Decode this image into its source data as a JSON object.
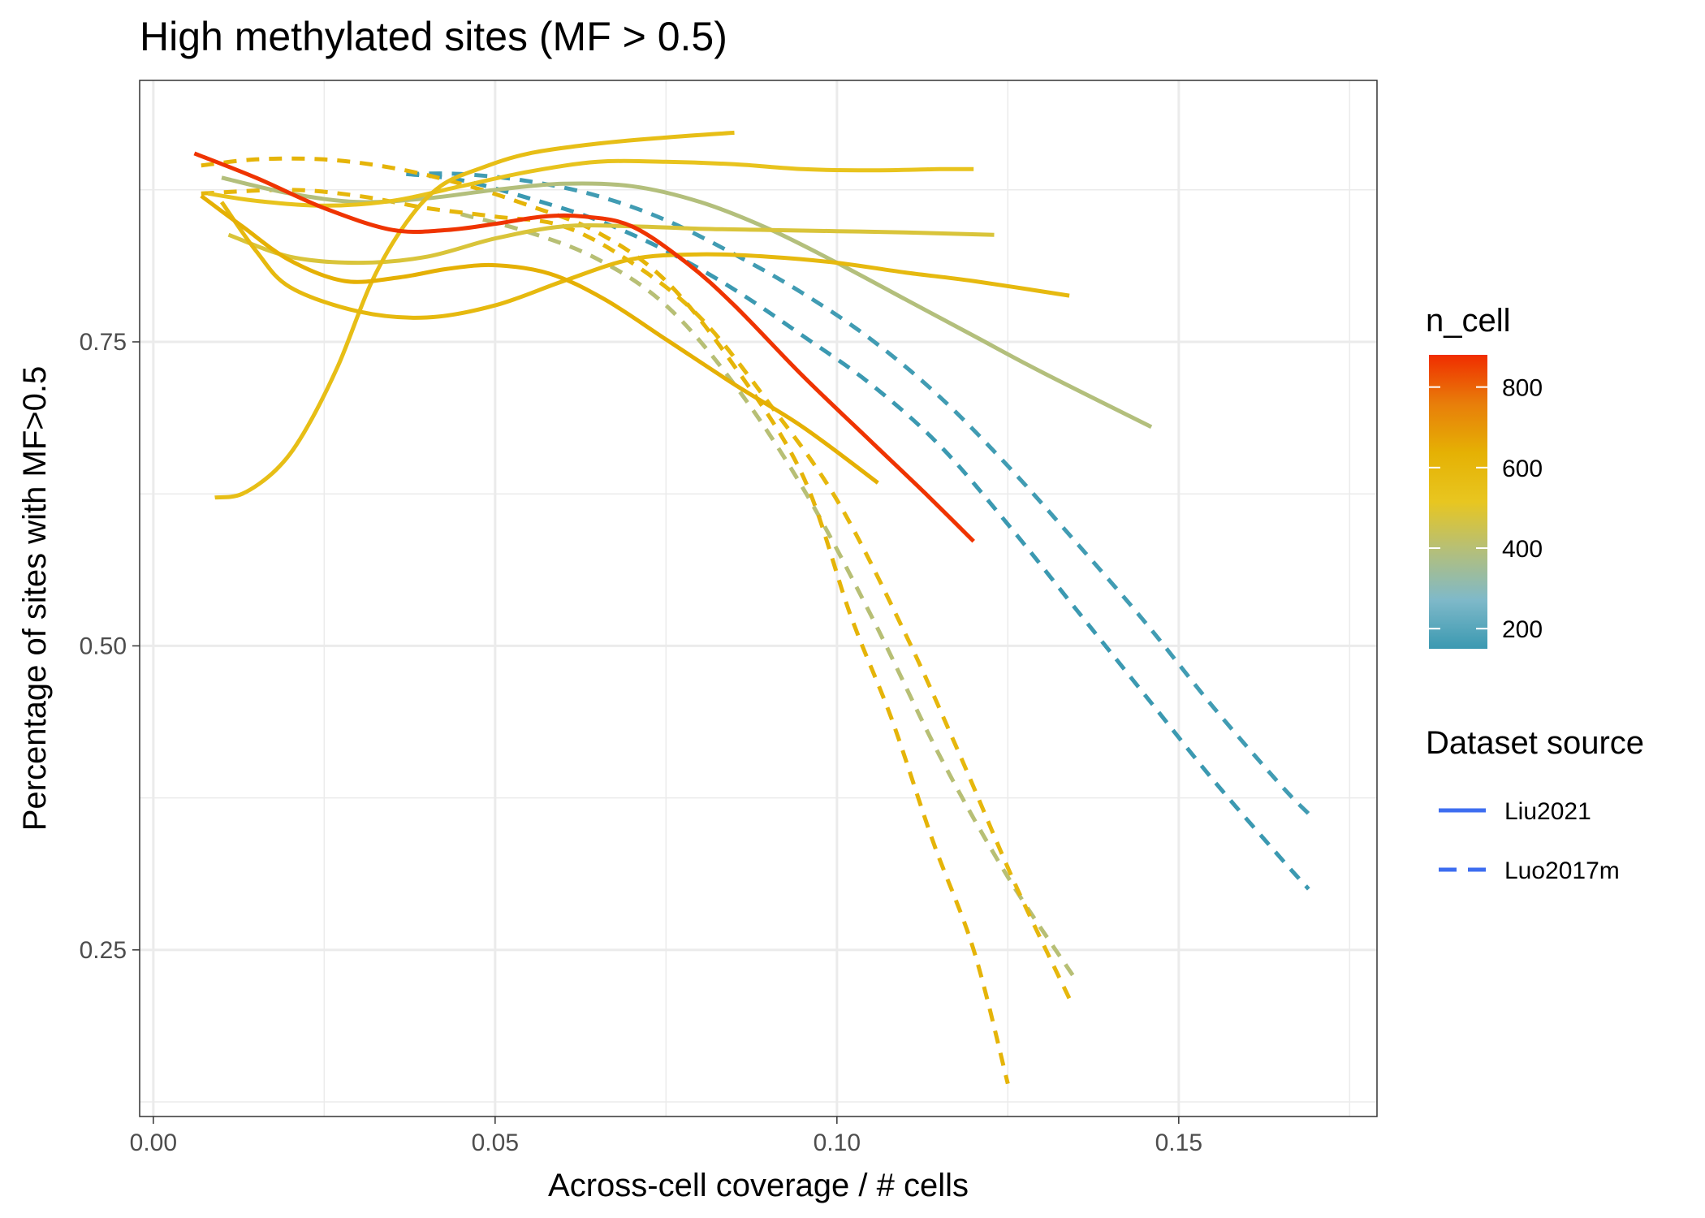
{
  "chart_data": {
    "type": "line",
    "title": "High methylated sites (MF > 0.5)",
    "xlabel": "Across-cell coverage / # cells",
    "ylabel": "Percentage of sites with MF>0.5",
    "xlim": [
      -0.002,
      0.179
    ],
    "ylim": [
      0.113,
      0.965
    ],
    "x_ticks": [
      0.0,
      0.05,
      0.1,
      0.15
    ],
    "x_tick_labels": [
      "0.00",
      "0.05",
      "0.10",
      "0.15"
    ],
    "y_ticks": [
      0.25,
      0.5,
      0.75
    ],
    "y_tick_labels": [
      "0.25",
      "0.50",
      "0.75"
    ],
    "grid": true,
    "colorbar": {
      "title": "n_cell",
      "min": 150,
      "max": 880,
      "ticks": [
        200,
        400,
        600,
        800
      ],
      "tick_labels": [
        "200",
        "400",
        "600",
        "800"
      ],
      "colors": [
        "#3b99b1",
        "#7fb9c9",
        "#b4bf7a",
        "#e8c620",
        "#e5b104",
        "#e87e0a",
        "#f02d00"
      ]
    },
    "legend": {
      "title": "Dataset source",
      "placement": "right",
      "entries": [
        {
          "label": "Liu2021",
          "linetype": "solid",
          "color": "#3d6df0"
        },
        {
          "label": "Luo2017m",
          "linetype": "dashed",
          "color": "#3d6df0"
        }
      ]
    },
    "series": [
      {
        "dataset": "Liu2021",
        "n_cell": 870,
        "points": [
          [
            0.006,
            0.905
          ],
          [
            0.015,
            0.885
          ],
          [
            0.025,
            0.86
          ],
          [
            0.035,
            0.842
          ],
          [
            0.043,
            0.842
          ],
          [
            0.05,
            0.847
          ],
          [
            0.057,
            0.853
          ],
          [
            0.063,
            0.853
          ],
          [
            0.07,
            0.845
          ],
          [
            0.078,
            0.815
          ],
          [
            0.085,
            0.78
          ],
          [
            0.095,
            0.722
          ],
          [
            0.105,
            0.668
          ],
          [
            0.113,
            0.625
          ],
          [
            0.12,
            0.586
          ]
        ]
      },
      {
        "dataset": "Liu2021",
        "n_cell": 640,
        "points": [
          [
            0.007,
            0.87
          ],
          [
            0.013,
            0.845
          ],
          [
            0.02,
            0.817
          ],
          [
            0.028,
            0.8
          ],
          [
            0.036,
            0.803
          ],
          [
            0.043,
            0.81
          ],
          [
            0.05,
            0.813
          ],
          [
            0.058,
            0.806
          ],
          [
            0.066,
            0.785
          ],
          [
            0.075,
            0.752
          ],
          [
            0.085,
            0.715
          ],
          [
            0.095,
            0.68
          ],
          [
            0.106,
            0.634
          ]
        ]
      },
      {
        "dataset": "Liu2021",
        "n_cell": 590,
        "points": [
          [
            0.01,
            0.865
          ],
          [
            0.015,
            0.825
          ],
          [
            0.02,
            0.795
          ],
          [
            0.03,
            0.775
          ],
          [
            0.04,
            0.77
          ],
          [
            0.05,
            0.78
          ],
          [
            0.06,
            0.8
          ],
          [
            0.07,
            0.818
          ],
          [
            0.08,
            0.822
          ],
          [
            0.09,
            0.82
          ],
          [
            0.1,
            0.815
          ],
          [
            0.11,
            0.807
          ],
          [
            0.12,
            0.8
          ],
          [
            0.134,
            0.788
          ]
        ]
      },
      {
        "dataset": "Liu2021",
        "n_cell": 560,
        "points": [
          [
            0.009,
            0.622
          ],
          [
            0.013,
            0.625
          ],
          [
            0.018,
            0.645
          ],
          [
            0.022,
            0.675
          ],
          [
            0.027,
            0.73
          ],
          [
            0.032,
            0.8
          ],
          [
            0.037,
            0.848
          ],
          [
            0.042,
            0.878
          ],
          [
            0.048,
            0.893
          ],
          [
            0.055,
            0.905
          ],
          [
            0.065,
            0.913
          ],
          [
            0.075,
            0.918
          ],
          [
            0.085,
            0.922
          ]
        ]
      },
      {
        "dataset": "Liu2021",
        "n_cell": 530,
        "points": [
          [
            0.008,
            0.872
          ],
          [
            0.015,
            0.866
          ],
          [
            0.025,
            0.862
          ],
          [
            0.035,
            0.866
          ],
          [
            0.045,
            0.878
          ],
          [
            0.055,
            0.89
          ],
          [
            0.065,
            0.898
          ],
          [
            0.075,
            0.898
          ],
          [
            0.085,
            0.896
          ],
          [
            0.095,
            0.892
          ],
          [
            0.105,
            0.891
          ],
          [
            0.115,
            0.892
          ],
          [
            0.12,
            0.892
          ]
        ]
      },
      {
        "dataset": "Liu2021",
        "n_cell": 480,
        "points": [
          [
            0.011,
            0.838
          ],
          [
            0.02,
            0.82
          ],
          [
            0.03,
            0.815
          ],
          [
            0.04,
            0.82
          ],
          [
            0.05,
            0.835
          ],
          [
            0.06,
            0.845
          ],
          [
            0.07,
            0.845
          ],
          [
            0.08,
            0.843
          ],
          [
            0.09,
            0.842
          ],
          [
            0.1,
            0.841
          ],
          [
            0.11,
            0.84
          ],
          [
            0.123,
            0.838
          ]
        ]
      },
      {
        "dataset": "Liu2021",
        "n_cell": 390,
        "points": [
          [
            0.01,
            0.885
          ],
          [
            0.02,
            0.872
          ],
          [
            0.03,
            0.865
          ],
          [
            0.04,
            0.868
          ],
          [
            0.05,
            0.875
          ],
          [
            0.06,
            0.88
          ],
          [
            0.07,
            0.878
          ],
          [
            0.08,
            0.865
          ],
          [
            0.09,
            0.843
          ],
          [
            0.1,
            0.815
          ],
          [
            0.11,
            0.785
          ],
          [
            0.12,
            0.755
          ],
          [
            0.13,
            0.725
          ],
          [
            0.146,
            0.68
          ]
        ]
      },
      {
        "dataset": "Luo2017m",
        "n_cell": 150,
        "points": [
          [
            0.037,
            0.888
          ],
          [
            0.045,
            0.883
          ],
          [
            0.055,
            0.868
          ],
          [
            0.065,
            0.85
          ],
          [
            0.075,
            0.825
          ],
          [
            0.085,
            0.793
          ],
          [
            0.095,
            0.755
          ],
          [
            0.105,
            0.715
          ],
          [
            0.115,
            0.665
          ],
          [
            0.125,
            0.6
          ],
          [
            0.135,
            0.53
          ],
          [
            0.145,
            0.46
          ],
          [
            0.155,
            0.39
          ],
          [
            0.165,
            0.325
          ],
          [
            0.169,
            0.3
          ]
        ]
      },
      {
        "dataset": "Luo2017m",
        "n_cell": 160,
        "points": [
          [
            0.037,
            0.888
          ],
          [
            0.045,
            0.888
          ],
          [
            0.055,
            0.882
          ],
          [
            0.065,
            0.87
          ],
          [
            0.075,
            0.85
          ],
          [
            0.085,
            0.822
          ],
          [
            0.095,
            0.79
          ],
          [
            0.105,
            0.752
          ],
          [
            0.115,
            0.705
          ],
          [
            0.125,
            0.648
          ],
          [
            0.135,
            0.585
          ],
          [
            0.145,
            0.52
          ],
          [
            0.155,
            0.45
          ],
          [
            0.165,
            0.385
          ],
          [
            0.169,
            0.362
          ]
        ]
      },
      {
        "dataset": "Luo2017m",
        "n_cell": 620,
        "points": [
          [
            0.007,
            0.895
          ],
          [
            0.015,
            0.9
          ],
          [
            0.025,
            0.9
          ],
          [
            0.035,
            0.893
          ],
          [
            0.045,
            0.88
          ],
          [
            0.055,
            0.862
          ],
          [
            0.065,
            0.84
          ],
          [
            0.075,
            0.8
          ],
          [
            0.085,
            0.73
          ],
          [
            0.095,
            0.64
          ],
          [
            0.102,
            0.525
          ],
          [
            0.108,
            0.44
          ],
          [
            0.114,
            0.34
          ],
          [
            0.12,
            0.25
          ],
          [
            0.125,
            0.14
          ]
        ]
      },
      {
        "dataset": "Luo2017m",
        "n_cell": 600,
        "points": [
          [
            0.007,
            0.872
          ],
          [
            0.02,
            0.875
          ],
          [
            0.03,
            0.87
          ],
          [
            0.04,
            0.86
          ],
          [
            0.05,
            0.853
          ],
          [
            0.06,
            0.845
          ],
          [
            0.07,
            0.815
          ],
          [
            0.08,
            0.77
          ],
          [
            0.09,
            0.7
          ],
          [
            0.1,
            0.62
          ],
          [
            0.11,
            0.51
          ],
          [
            0.118,
            0.41
          ],
          [
            0.126,
            0.305
          ],
          [
            0.134,
            0.21
          ]
        ]
      },
      {
        "dataset": "Luo2017m",
        "n_cell": 400,
        "points": [
          [
            0.045,
            0.855
          ],
          [
            0.055,
            0.84
          ],
          [
            0.065,
            0.818
          ],
          [
            0.075,
            0.78
          ],
          [
            0.085,
            0.715
          ],
          [
            0.095,
            0.63
          ],
          [
            0.105,
            0.525
          ],
          [
            0.115,
            0.41
          ],
          [
            0.125,
            0.31
          ],
          [
            0.135,
            0.225
          ]
        ]
      }
    ]
  }
}
